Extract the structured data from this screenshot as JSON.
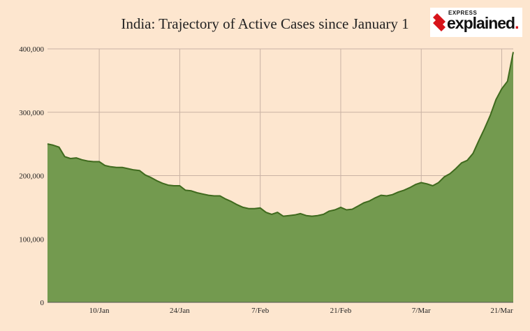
{
  "title": "India: Trajectory of Active Cases since January 1",
  "logo": {
    "small_text": "EXPRESS",
    "big_text": "explained",
    "dot": "."
  },
  "chart_data": {
    "type": "area",
    "title": "India: Trajectory of Active Cases since January 1",
    "xlabel": "",
    "ylabel": "",
    "ylim": [
      0,
      400000
    ],
    "grid": true,
    "fill_color": "#739a4f",
    "line_color": "#3f6a1e",
    "y_ticks": [
      0,
      100000,
      200000,
      300000,
      400000
    ],
    "y_tick_labels": [
      "0",
      "100,000",
      "200,000",
      "300,000",
      "400,000"
    ],
    "x_ticks": [
      {
        "day": 10,
        "label": "10/Jan"
      },
      {
        "day": 24,
        "label": "24/Jan"
      },
      {
        "day": 38,
        "label": "7/Feb"
      },
      {
        "day": 52,
        "label": "21/Feb"
      },
      {
        "day": 66,
        "label": "7/Mar"
      },
      {
        "day": 80,
        "label": "21/Mar"
      }
    ],
    "x": [
      1,
      2,
      3,
      4,
      5,
      6,
      7,
      8,
      9,
      10,
      11,
      12,
      13,
      14,
      15,
      16,
      17,
      18,
      19,
      20,
      21,
      22,
      23,
      24,
      25,
      26,
      27,
      28,
      29,
      30,
      31,
      32,
      33,
      34,
      35,
      36,
      37,
      38,
      39,
      40,
      41,
      42,
      43,
      44,
      45,
      46,
      47,
      48,
      49,
      50,
      51,
      52,
      53,
      54,
      55,
      56,
      57,
      58,
      59,
      60,
      61,
      62,
      63,
      64,
      65,
      66,
      67,
      68,
      69,
      70,
      71,
      72,
      73,
      74,
      75,
      76,
      77,
      78,
      79,
      80,
      81,
      82
    ],
    "values": [
      250000,
      248000,
      245000,
      230000,
      227000,
      228000,
      225000,
      223000,
      222000,
      222000,
      216000,
      214000,
      213000,
      213000,
      211000,
      209000,
      208000,
      201000,
      197000,
      192000,
      188000,
      185000,
      184000,
      184000,
      177000,
      176000,
      173000,
      171000,
      169000,
      168000,
      168000,
      163000,
      159000,
      154000,
      150000,
      148000,
      148000,
      149000,
      142000,
      139000,
      142000,
      136000,
      137000,
      138000,
      140000,
      137000,
      136000,
      137000,
      139000,
      144000,
      146000,
      150000,
      146000,
      147000,
      152000,
      157000,
      160000,
      165000,
      169000,
      168000,
      170000,
      174000,
      177000,
      181000,
      186000,
      189000,
      187000,
      184000,
      189000,
      198000,
      203000,
      211000,
      220000,
      224000,
      235000,
      255000,
      274000,
      295000,
      320000,
      337000,
      349000,
      395000
    ]
  }
}
